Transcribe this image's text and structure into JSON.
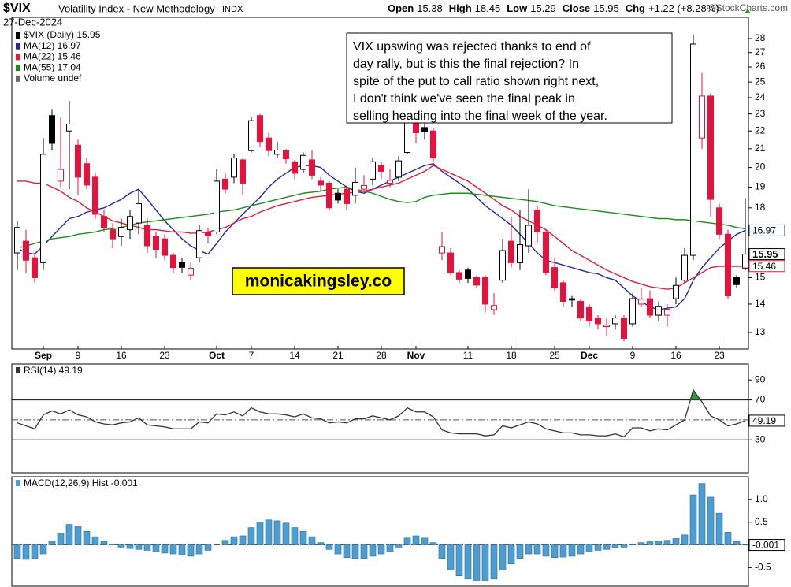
{
  "chart_data": [
    {
      "type": "candlestick",
      "title": "$VIX",
      "subtitle": "Volatility Index - New Methodology",
      "exchange": "INDX",
      "date": "27-Dec-2024",
      "quote": [
        "Open",
        "High",
        "Low",
        "Close",
        "Chg"
      ],
      "change": "+1.22 (+8.28%)",
      "credit": "©StockCharts.com",
      "name": "$VIX (Daily) 15.95",
      "volume_label": "Volume undef",
      "annotation": [
        "VIX upswing was rejected thanks to end of",
        "day rally, but is this the final rejection? In",
        "spite of the put to call ratio shown right next,",
        "I don't think we've seen the final peak in",
        "selling heading into the final week of the year."
      ],
      "watermark": "monicakingsley.co",
      "log_scale": true,
      "up_color": "#000000",
      "down_color": "#e0143c",
      "categories": [
        null,
        null,
        null,
        "Sep",
        null,
        null,
        null,
        "9",
        null,
        null,
        null,
        null,
        "16",
        null,
        null,
        null,
        null,
        "23",
        null,
        null,
        null,
        null,
        null,
        "Oct",
        null,
        null,
        null,
        "7",
        null,
        null,
        null,
        null,
        "14",
        null,
        null,
        null,
        null,
        "21",
        null,
        null,
        null,
        null,
        "28",
        null,
        null,
        null,
        "Nov",
        null,
        null,
        null,
        null,
        null,
        "11",
        null,
        null,
        null,
        null,
        "18",
        null,
        null,
        null,
        null,
        "25",
        null,
        null,
        null,
        "Dec",
        null,
        null,
        null,
        null,
        "9",
        null,
        null,
        null,
        null,
        "16",
        null,
        null,
        null,
        null,
        "23",
        null,
        null,
        null
      ],
      "open": [
        16.0,
        16.5,
        15.8,
        15.6,
        22.9,
        19.3,
        22.0,
        21.2,
        20.2,
        19.5,
        17.6,
        17.0,
        16.7,
        17.0,
        17.3,
        17.2,
        16.7,
        16.6,
        15.9,
        15.6,
        15.1,
        15.8,
        16.9,
        16.9,
        19.4,
        19.5,
        20.4,
        20.9,
        22.9,
        21.6,
        20.7,
        20.9,
        20.3,
        19.9,
        20.4,
        19.3,
        19.2,
        18.7,
        18.9,
        18.6,
        18.9,
        19.4,
        20.1,
        19.2,
        19.5,
        20.8,
        22.9,
        22.2,
        22.0,
        16.0,
        16.0,
        15.2,
        15.3,
        15.0,
        15.0,
        13.8,
        14.9,
        16.5,
        15.6,
        16.3,
        17.9,
        16.9,
        15.4,
        14.8,
        14.2,
        14.1,
        13.9,
        13.5,
        13.2,
        13.3,
        13.5,
        13.3,
        14.0,
        14.2,
        13.6,
        13.6,
        14.2,
        14.9,
        15.9,
        21.6,
        24.1,
        18.0,
        16.8,
        15.0,
        15.38
      ],
      "high": [
        17.4,
        17.0,
        16.0,
        21.6,
        23.3,
        22.8,
        23.8,
        21.5,
        20.5,
        19.7,
        17.9,
        17.3,
        17.5,
        17.9,
        18.9,
        17.5,
        16.9,
        16.8,
        16.0,
        15.8,
        15.6,
        17.2,
        17.1,
        19.9,
        19.7,
        20.7,
        20.5,
        22.8,
        23.0,
        21.9,
        21.4,
        21.0,
        20.4,
        20.8,
        20.9,
        19.5,
        19.3,
        18.9,
        19.1,
        20.0,
        19.6,
        20.5,
        20.3,
        19.9,
        20.6,
        23.5,
        23.0,
        22.5,
        22.2,
        16.9,
        16.2,
        15.3,
        15.4,
        15.1,
        15.1,
        14.4,
        16.6,
        17.6,
        17.9,
        18.9,
        18.1,
        17.0,
        15.8,
        14.9,
        14.3,
        14.2,
        14.0,
        13.6,
        13.5,
        13.6,
        13.6,
        14.4,
        14.6,
        14.5,
        14.1,
        14.0,
        15.0,
        16.2,
        28.3,
        25.6,
        24.3,
        18.2,
        17.0,
        15.1,
        18.45
      ],
      "low": [
        15.3,
        15.2,
        14.8,
        15.3,
        20.9,
        19.0,
        18.9,
        18.6,
        18.9,
        17.5,
        16.9,
        16.2,
        16.3,
        16.6,
        16.8,
        16.0,
        15.8,
        15.7,
        15.2,
        15.2,
        14.9,
        15.6,
        16.4,
        16.8,
        18.7,
        19.2,
        18.6,
        20.8,
        21.1,
        20.6,
        20.5,
        20.2,
        19.4,
        19.7,
        19.4,
        18.8,
        17.9,
        18.2,
        17.9,
        18.2,
        18.7,
        19.1,
        19.4,
        19.0,
        19.3,
        20.7,
        21.3,
        21.5,
        20.3,
        15.7,
        15.1,
        14.8,
        14.8,
        14.6,
        13.7,
        13.6,
        14.8,
        15.4,
        15.3,
        16.0,
        16.4,
        15.1,
        14.5,
        13.9,
        13.9,
        13.4,
        13.2,
        13.1,
        12.9,
        13.1,
        12.7,
        13.2,
        13.9,
        13.5,
        13.4,
        13.2,
        14.0,
        14.8,
        15.7,
        21.0,
        17.6,
        16.6,
        14.2,
        14.6,
        15.29
      ],
      "close": [
        17.1,
        15.7,
        15.0,
        20.7,
        21.3,
        19.9,
        22.4,
        19.5,
        19.1,
        17.7,
        17.1,
        16.6,
        17.1,
        17.6,
        18.2,
        16.3,
        16.15,
        15.9,
        15.4,
        15.41,
        15.37,
        16.96,
        16.73,
        19.3,
        18.9,
        20.5,
        19.2,
        22.6,
        21.4,
        20.9,
        20.93,
        20.46,
        19.7,
        20.64,
        19.6,
        19.1,
        18.0,
        18.37,
        18.2,
        19.24,
        19.08,
        20.3,
        19.8,
        19.34,
        20.35,
        23.2,
        21.9,
        21.98,
        20.5,
        16.27,
        15.2,
        14.94,
        14.97,
        14.71,
        14.0,
        13.95,
        16.1,
        15.6,
        16.35,
        17.2,
        16.9,
        15.2,
        14.6,
        14.1,
        14.15,
        13.5,
        13.4,
        13.3,
        13.25,
        13.5,
        12.8,
        14.2,
        14.18,
        13.6,
        13.92,
        13.81,
        14.7,
        15.9,
        27.6,
        24.1,
        18.4,
        16.8,
        14.3,
        14.73,
        15.95
      ],
      "series": [
        {
          "name": "MA(12) 16.97",
          "color": "#1f2a9e",
          "values": [
            16.2,
            16.0,
            15.95,
            16.3,
            16.7,
            17.1,
            17.5,
            17.6,
            17.8,
            17.9,
            18.0,
            18.2,
            18.4,
            18.7,
            18.9,
            18.4,
            17.9,
            17.4,
            17.0,
            16.6,
            16.3,
            16.1,
            15.95,
            16.4,
            16.9,
            17.3,
            17.7,
            18.1,
            18.5,
            19.0,
            19.4,
            19.7,
            20.0,
            20.1,
            20.1,
            20.0,
            19.6,
            19.3,
            19.0,
            18.8,
            18.7,
            18.9,
            19.1,
            19.3,
            19.5,
            19.7,
            19.9,
            20.1,
            20.2,
            19.8,
            19.5,
            19.2,
            18.9,
            18.5,
            18.1,
            17.8,
            17.5,
            17.2,
            16.8,
            16.4,
            16.0,
            15.7,
            15.6,
            15.5,
            15.4,
            15.3,
            15.2,
            15.15,
            15.0,
            14.9,
            14.6,
            14.3,
            14.1,
            13.9,
            13.8,
            13.85,
            13.9,
            14.2,
            14.9,
            15.4,
            15.8,
            16.2,
            16.5,
            16.8,
            16.97
          ]
        },
        {
          "name": "MA(22) 15.46",
          "color": "#dc1f3c",
          "values": [
            19.3,
            19.3,
            19.2,
            19.2,
            19.0,
            18.8,
            18.5,
            18.3,
            18.0,
            17.8,
            17.6,
            17.4,
            17.3,
            17.2,
            17.1,
            17.0,
            17.0,
            16.95,
            16.9,
            16.9,
            16.85,
            16.85,
            16.9,
            17.0,
            17.1,
            17.3,
            17.5,
            17.6,
            17.8,
            17.95,
            18.1,
            18.2,
            18.3,
            18.4,
            18.5,
            18.55,
            18.6,
            18.65,
            18.7,
            18.75,
            18.8,
            18.9,
            19.0,
            19.1,
            19.2,
            19.4,
            19.6,
            19.8,
            20.1,
            19.9,
            19.7,
            19.5,
            19.3,
            19.0,
            18.7,
            18.4,
            18.1,
            17.9,
            17.6,
            17.4,
            17.2,
            17.0,
            16.7,
            16.4,
            16.1,
            15.9,
            15.7,
            15.5,
            15.3,
            15.15,
            15.0,
            14.85,
            14.75,
            14.65,
            14.6,
            14.55,
            14.6,
            14.8,
            15.0,
            15.2,
            15.4,
            15.45,
            15.45,
            15.45,
            15.46
          ]
        },
        {
          "name": "MA(55) 17.04",
          "color": "#1e8a1e",
          "values": [
            16.2,
            16.3,
            16.4,
            16.5,
            16.6,
            16.65,
            16.7,
            16.8,
            16.85,
            16.9,
            17.0,
            17.05,
            17.1,
            17.2,
            17.3,
            17.35,
            17.4,
            17.45,
            17.5,
            17.55,
            17.6,
            17.65,
            17.7,
            17.8,
            17.85,
            17.9,
            18.0,
            18.1,
            18.2,
            18.3,
            18.4,
            18.5,
            18.6,
            18.7,
            18.75,
            18.8,
            18.9,
            18.95,
            19.0,
            18.9,
            18.8,
            18.7,
            18.55,
            18.4,
            18.3,
            18.25,
            18.3,
            18.5,
            18.6,
            18.65,
            18.7,
            18.7,
            18.7,
            18.65,
            18.6,
            18.55,
            18.5,
            18.45,
            18.4,
            18.35,
            18.3,
            18.2,
            18.1,
            18.05,
            18.0,
            17.95,
            17.9,
            17.85,
            17.8,
            17.75,
            17.7,
            17.65,
            17.6,
            17.55,
            17.5,
            17.5,
            17.45,
            17.45,
            17.4,
            17.35,
            17.3,
            17.25,
            17.2,
            17.1,
            17.04
          ]
        }
      ],
      "ylim": [
        12.45,
        29.6
      ],
      "yticks": [
        13,
        14,
        15,
        16,
        17,
        18,
        19,
        20,
        21,
        22,
        23,
        24,
        25,
        26,
        27,
        28
      ]
    },
    {
      "type": "line",
      "title": "RSI(14) 49.19",
      "color": "#333333",
      "overbought_color": "#3a9a3a",
      "values": [
        47,
        44,
        41,
        55,
        59,
        56,
        60,
        55,
        53,
        48,
        46,
        45,
        47,
        48,
        52,
        45,
        44,
        43,
        41,
        41,
        41,
        48,
        47,
        56,
        55,
        58,
        54,
        62,
        58,
        56,
        56,
        55,
        53,
        56,
        52,
        51,
        47,
        48,
        47,
        51,
        51,
        54,
        52,
        50,
        54,
        62,
        58,
        58,
        53,
        40,
        37,
        36,
        36,
        36,
        34,
        35,
        44,
        42,
        45,
        48,
        46,
        41,
        39,
        37,
        37,
        35,
        35,
        34,
        34,
        36,
        33,
        42,
        42,
        39,
        41,
        40,
        45,
        50,
        80,
        68,
        54,
        50,
        44,
        46,
        49.19
      ],
      "ylim": [
        -3,
        106
      ],
      "yticks": [
        30,
        70,
        90
      ],
      "levels": [
        70,
        30
      ],
      "midline": 50
    },
    {
      "type": "histogram",
      "title": "MACD(12,26,9) Hist -0.001",
      "color": "#4d9dd0",
      "edge_color": "#2a6a98",
      "values": [
        -0.3,
        -0.32,
        -0.3,
        -0.2,
        0.08,
        0.25,
        0.45,
        0.4,
        0.3,
        0.18,
        0.08,
        0.02,
        -0.05,
        -0.08,
        -0.1,
        -0.12,
        -0.15,
        -0.18,
        -0.2,
        -0.22,
        -0.25,
        -0.2,
        -0.12,
        0.0,
        0.1,
        0.18,
        0.2,
        0.38,
        0.5,
        0.55,
        0.53,
        0.48,
        0.38,
        0.3,
        0.18,
        0.05,
        -0.1,
        -0.2,
        -0.28,
        -0.3,
        -0.3,
        -0.25,
        -0.2,
        -0.15,
        -0.05,
        0.15,
        0.2,
        0.15,
        0.05,
        -0.3,
        -0.55,
        -0.68,
        -0.75,
        -0.78,
        -0.78,
        -0.75,
        -0.55,
        -0.42,
        -0.3,
        -0.2,
        -0.2,
        -0.25,
        -0.28,
        -0.27,
        -0.25,
        -0.2,
        -0.15,
        -0.12,
        -0.1,
        -0.06,
        -0.05,
        0.02,
        0.05,
        0.07,
        0.08,
        0.1,
        0.14,
        0.22,
        1.1,
        1.35,
        1.05,
        0.7,
        0.28,
        0.08,
        -0.001
      ],
      "ylim": [
        -0.91,
        1.5
      ],
      "yticks": [
        -0.5,
        0.5,
        {
          "value": 1,
          "label": "1.0"
        }
      ],
      "midline": 0
    }
  ]
}
